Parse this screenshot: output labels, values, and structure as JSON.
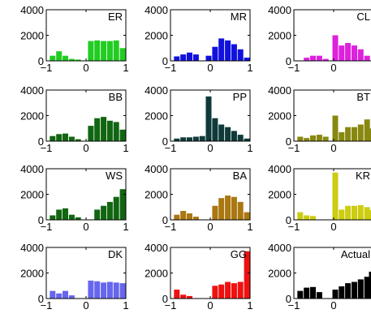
{
  "figure": {
    "layout": {
      "rows": 4,
      "cols": 3
    },
    "chart_data": [
      {
        "type": "bar",
        "title": "ER",
        "color": "#22cc22",
        "x": [
          -0.84,
          -0.68,
          -0.52,
          -0.36,
          -0.2,
          0.12,
          0.28,
          0.44,
          0.6,
          0.76,
          0.92
        ],
        "values": [
          400,
          750,
          400,
          150,
          100,
          1550,
          1600,
          1550,
          1550,
          1600,
          1000
        ],
        "xlim": [
          -1,
          1
        ],
        "ylim": [
          0,
          4000
        ],
        "xticks": [
          "-1",
          "0",
          "1"
        ],
        "yticks": [
          "0",
          "2000",
          "4000"
        ]
      },
      {
        "type": "bar",
        "title": "MR",
        "color": "#1111dd",
        "x": [
          -0.84,
          -0.68,
          -0.52,
          -0.36,
          -0.04,
          0.12,
          0.28,
          0.44,
          0.6,
          0.76,
          0.92
        ],
        "values": [
          350,
          500,
          650,
          500,
          400,
          1100,
          1750,
          1600,
          1300,
          900,
          250
        ],
        "xlim": [
          -1,
          1
        ],
        "ylim": [
          0,
          4000
        ],
        "xticks": [
          "-1",
          "0",
          "1"
        ],
        "yticks": [
          "0",
          "2000",
          "4000"
        ]
      },
      {
        "type": "bar",
        "title": "CL",
        "color": "#dd22dd",
        "x": [
          -0.68,
          -0.52,
          -0.36,
          -0.2,
          0.04,
          0.2,
          0.36,
          0.52,
          0.68,
          0.84
        ],
        "values": [
          250,
          400,
          400,
          150,
          2000,
          1200,
          1400,
          1200,
          900,
          400
        ],
        "xlim": [
          -1,
          1
        ],
        "ylim": [
          0,
          4000
        ],
        "xticks": [
          "-1",
          "0",
          "1"
        ],
        "yticks": [
          "0",
          "2000",
          "4000"
        ]
      },
      {
        "type": "bar",
        "title": "BB",
        "color": "#116611",
        "x": [
          -0.84,
          -0.68,
          -0.52,
          -0.36,
          -0.2,
          0.12,
          0.28,
          0.44,
          0.6,
          0.76,
          0.92
        ],
        "values": [
          400,
          550,
          600,
          350,
          150,
          1200,
          1800,
          1900,
          1600,
          1500,
          900
        ],
        "xlim": [
          -1,
          1
        ],
        "ylim": [
          0,
          4000
        ],
        "xticks": [
          "-1",
          "0",
          "1"
        ],
        "yticks": [
          "0",
          "2000",
          "4000"
        ]
      },
      {
        "type": "bar",
        "title": "PP",
        "color": "#103a3a",
        "x": [
          -0.84,
          -0.68,
          -0.52,
          -0.36,
          -0.2,
          -0.04,
          0.12,
          0.28,
          0.44,
          0.6,
          0.76,
          0.92
        ],
        "values": [
          200,
          300,
          300,
          350,
          400,
          3500,
          1800,
          1300,
          1100,
          800,
          500,
          200
        ],
        "xlim": [
          -1,
          1
        ],
        "ylim": [
          0,
          4000
        ],
        "xticks": [
          "-1",
          "0",
          "1"
        ],
        "yticks": [
          "0",
          "2000",
          "4000"
        ]
      },
      {
        "type": "bar",
        "title": "BT",
        "color": "#888811",
        "x": [
          -0.84,
          -0.68,
          -0.52,
          -0.36,
          -0.2,
          0.04,
          0.2,
          0.36,
          0.52,
          0.68,
          0.84,
          0.96
        ],
        "values": [
          350,
          250,
          450,
          500,
          350,
          2000,
          700,
          1100,
          1100,
          1300,
          1700,
          1000
        ],
        "xlim": [
          -1,
          1
        ],
        "ylim": [
          0,
          4000
        ],
        "xticks": [
          "-1",
          "0",
          "1"
        ],
        "yticks": [
          "0",
          "2000",
          "4000"
        ]
      },
      {
        "type": "bar",
        "title": "WS",
        "color": "#116611",
        "x": [
          -0.84,
          -0.68,
          -0.52,
          -0.36,
          -0.2,
          0.28,
          0.44,
          0.6,
          0.76,
          0.92
        ],
        "values": [
          350,
          800,
          900,
          400,
          200,
          800,
          1100,
          1400,
          1800,
          2400
        ],
        "xlim": [
          -1,
          1
        ],
        "ylim": [
          0,
          4000
        ],
        "xticks": [
          "-1",
          "0",
          "1"
        ],
        "yticks": [
          "0",
          "2000",
          "4000"
        ]
      },
      {
        "type": "bar",
        "title": "BA",
        "color": "#aa7711",
        "x": [
          -0.84,
          -0.68,
          -0.52,
          -0.36,
          0.12,
          0.28,
          0.44,
          0.6,
          0.76,
          0.92
        ],
        "values": [
          400,
          700,
          500,
          250,
          1100,
          1700,
          1900,
          1800,
          1400,
          600
        ],
        "xlim": [
          -1,
          1
        ],
        "ylim": [
          0,
          4000
        ],
        "xticks": [
          "-1",
          "0",
          "1"
        ],
        "yticks": [
          "0",
          "2000",
          "4000"
        ]
      },
      {
        "type": "bar",
        "title": "KR",
        "color": "#cccc11",
        "x": [
          -0.84,
          -0.68,
          -0.52,
          0.04,
          0.2,
          0.36,
          0.52,
          0.68,
          0.84,
          0.96
        ],
        "values": [
          600,
          350,
          300,
          3700,
          800,
          1100,
          1100,
          1150,
          1000,
          750
        ],
        "xlim": [
          -1,
          1
        ],
        "ylim": [
          0,
          4000
        ],
        "xticks": [
          "-1",
          "0",
          "1"
        ],
        "yticks": [
          "0",
          "2000",
          "4000"
        ]
      },
      {
        "type": "bar",
        "title": "DK",
        "color": "#6666ee",
        "x": [
          -0.84,
          -0.68,
          -0.52,
          -0.36,
          0.12,
          0.28,
          0.44,
          0.6,
          0.76,
          0.92
        ],
        "values": [
          600,
          400,
          600,
          250,
          1400,
          1350,
          1250,
          1300,
          1250,
          1200
        ],
        "xlim": [
          -1,
          1
        ],
        "ylim": [
          0,
          4000
        ],
        "xticks": [
          "-1",
          "0",
          "1"
        ],
        "yticks": [
          "0",
          "2000",
          "4000"
        ]
      },
      {
        "type": "bar",
        "title": "GG",
        "color": "#ee1111",
        "x": [
          -0.84,
          -0.68,
          -0.52,
          0.12,
          0.28,
          0.44,
          0.6,
          0.76,
          0.92
        ],
        "values": [
          700,
          300,
          200,
          1000,
          1100,
          1300,
          1200,
          1300,
          3700
        ],
        "xlim": [
          -1,
          1
        ],
        "ylim": [
          0,
          4000
        ],
        "xticks": [
          "-1",
          "0",
          "1"
        ],
        "yticks": [
          "0",
          "2000",
          "4000"
        ]
      },
      {
        "type": "bar",
        "title": "Actual",
        "color": "#000000",
        "x": [
          -0.84,
          -0.68,
          -0.52,
          -0.36,
          0.04,
          0.2,
          0.36,
          0.52,
          0.68,
          0.84,
          0.96
        ],
        "values": [
          600,
          850,
          900,
          500,
          700,
          950,
          1200,
          1300,
          1500,
          1700,
          2100
        ],
        "xlim": [
          -1,
          1
        ],
        "ylim": [
          0,
          4000
        ],
        "xticks": [
          "-1",
          "0",
          "1"
        ],
        "yticks": [
          "0",
          "2000",
          "4000"
        ]
      }
    ]
  }
}
